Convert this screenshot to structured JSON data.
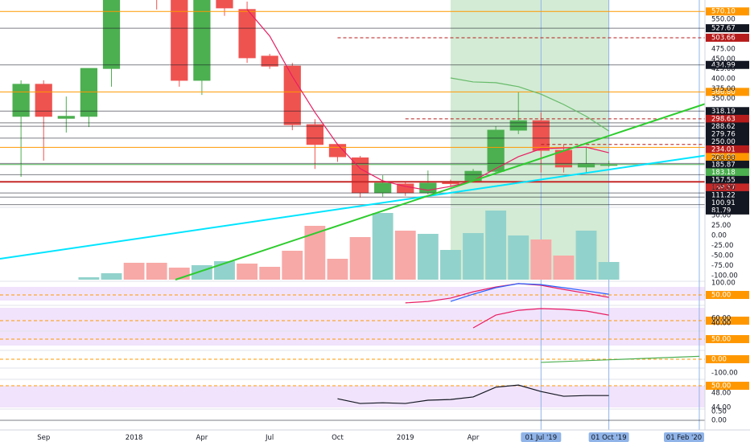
{
  "chart_data": [
    {
      "type": "candlestick",
      "x": [
        0,
        1,
        2,
        3,
        4,
        5,
        6,
        7,
        8,
        9,
        10,
        11,
        12,
        13,
        14,
        15,
        16,
        17,
        18,
        19,
        20,
        21,
        22,
        23,
        24,
        25,
        26
      ],
      "open": [
        305,
        386,
        300,
        305,
        426,
        640,
        700,
        650,
        396,
        640,
        575,
        457,
        432,
        284,
        234,
        200,
        112,
        134,
        112,
        140,
        142,
        166,
        270,
        294,
        219,
        177,
        183
      ],
      "high": [
        396,
        396,
        355,
        426,
        660,
        900,
        760,
        700,
        700,
        680,
        595,
        463,
        440,
        298,
        236,
        205,
        156,
        140,
        168,
        145,
        172,
        280,
        366,
        315,
        234,
        227,
        193
      ],
      "low": [
        152,
        193,
        264,
        278,
        380,
        610,
        575,
        380,
        359,
        559,
        440,
        425,
        270,
        172,
        190,
        100,
        102,
        104,
        108,
        128,
        138,
        160,
        260,
        163,
        163,
        163,
        177
      ],
      "close": [
        386,
        305,
        305,
        426,
        640,
        700,
        650,
        396,
        640,
        579,
        453,
        432,
        284,
        234,
        203,
        112,
        136,
        112,
        136,
        135,
        166,
        270,
        294,
        219,
        177,
        185,
        183
      ],
      "up_color": "#4caf50",
      "down_color": "#ef5350",
      "series": [
        {
          "color": "#e91e63",
          "values": [
            null,
            null,
            null,
            null,
            null,
            null,
            null,
            null,
            null,
            null,
            575,
            508,
            406,
            315,
            234,
            173,
            142,
            128,
            118,
            128,
            142,
            173,
            203,
            223,
            225,
            227,
            213
          ]
        },
        {
          "color": "#66bb6a",
          "values": [
            null,
            null,
            null,
            null,
            null,
            null,
            null,
            null,
            null,
            null,
            null,
            null,
            null,
            null,
            null,
            null,
            null,
            null,
            null,
            402,
            392,
            390,
            380,
            361,
            335,
            305,
            268
          ]
        }
      ],
      "xlim": [
        -0.93,
        30.25
      ],
      "ylim": [
        75,
        599
      ],
      "xticks": [
        {
          "value": 1,
          "label": "Sep"
        },
        {
          "value": 5,
          "label": "2018"
        },
        {
          "value": 8,
          "label": "Apr"
        },
        {
          "value": 11,
          "label": "Jul"
        },
        {
          "value": 14,
          "label": "Oct"
        },
        {
          "value": 17,
          "label": "2019"
        },
        {
          "value": 20,
          "label": "Apr"
        }
      ],
      "markers": [
        {
          "value": 23,
          "label": "01 Jul '19"
        },
        {
          "value": 26,
          "label": "01 Oct '19"
        },
        {
          "value": 30,
          "label": "01 Feb '20"
        }
      ],
      "marker_color": "#90b4e8",
      "highlight": {
        "range": [
          19,
          26
        ],
        "color": "#c8e6c9"
      },
      "yticks": [
        {
          "value": 550,
          "label": "550.00"
        },
        {
          "value": 475,
          "label": "475.00"
        },
        {
          "value": 450,
          "label": "450.00"
        },
        {
          "value": 425,
          "label": "425.00"
        },
        {
          "value": 400,
          "label": "400.00"
        },
        {
          "value": 375,
          "label": "375.00"
        },
        {
          "value": 350,
          "label": "350.00"
        },
        {
          "value": 200,
          "label": "200.00"
        },
        {
          "value": 125,
          "label": "125.00"
        }
      ],
      "levels": [
        {
          "value": 570.1,
          "label": "570.10",
          "color": "#ff9800"
        },
        {
          "value": 527.67,
          "label": "527.67",
          "color": "#131722"
        },
        {
          "value": 503.66,
          "label": "503.66",
          "color": "#b71c1c",
          "style": "dashed",
          "from": 14
        },
        {
          "value": 434.99,
          "label": "434.99",
          "color": "#131722"
        },
        {
          "value": 366.8,
          "label": "366.80",
          "color": "#ff9800"
        },
        {
          "value": 318.19,
          "label": "318.19",
          "color": "#131722"
        },
        {
          "value": 298.63,
          "label": "298.63",
          "color": "#b71c1c",
          "style": "dashed",
          "from": 17
        },
        {
          "value": 288.62,
          "label": "288.62",
          "color": "#131722"
        },
        {
          "value": 279.76,
          "label": "279.76",
          "color": "#131722"
        },
        {
          "value": 250,
          "label": "250.00",
          "color": "#131722"
        },
        {
          "value": 234.01,
          "label": "234.01",
          "color": "#b71c1c",
          "style": "dashed",
          "from": 23
        },
        {
          "value": 226.56,
          "label": "226.56",
          "color": "#ff9800"
        },
        {
          "value": 185.87,
          "label": "185.87",
          "color": "#131722"
        },
        {
          "value": 183.18,
          "label": "183.18",
          "color": "#4caf50"
        },
        {
          "value": 157.55,
          "label": "157.55",
          "color": "#131722"
        },
        {
          "value": 139.57,
          "label": "139.57",
          "color": "#c62828"
        },
        {
          "value": 111.22,
          "label": "111.22",
          "color": "#131722"
        },
        {
          "value": 100.91,
          "label": "100.91",
          "color": "#131722"
        },
        {
          "value": 81.79,
          "label": "81.79",
          "color": "#131722"
        }
      ]
    },
    {
      "type": "bar",
      "x": [
        3,
        4,
        5,
        6,
        7,
        8,
        9,
        10,
        11,
        12,
        13,
        14,
        15,
        16,
        17,
        18,
        19,
        20,
        21,
        22,
        23,
        24,
        25,
        26
      ],
      "values": [
        -104,
        -94,
        -68,
        -68,
        -80,
        -74,
        -64,
        -70,
        -78,
        -38,
        24,
        -58,
        -4,
        56,
        12,
        4,
        -36,
        6,
        62,
        0,
        -10,
        -50,
        12,
        -66
      ],
      "colors": [
        "#92d2cc",
        "#92d2cc",
        "#f7a9a7",
        "#f7a9a7",
        "#f7a9a7",
        "#92d2cc",
        "#92d2cc",
        "#f7a9a7",
        "#f7a9a7",
        "#f7a9a7",
        "#f7a9a7",
        "#f7a9a7",
        "#f7a9a7",
        "#92d2cc",
        "#f7a9a7",
        "#92d2cc",
        "#92d2cc",
        "#92d2cc",
        "#92d2cc",
        "#92d2cc",
        "#f7a9a7",
        "#f7a9a7",
        "#92d2cc",
        "#92d2cc"
      ],
      "ylim": [
        -110,
        70
      ],
      "yticks": [
        {
          "value": 50,
          "label": "50.00"
        },
        {
          "value": 25,
          "label": "25.00"
        },
        {
          "value": 0,
          "label": "0.00"
        },
        {
          "value": -25,
          "label": "-25.00"
        },
        {
          "value": -50,
          "label": "-50.00"
        },
        {
          "value": -75,
          "label": "-75.00"
        },
        {
          "value": -100,
          "label": "-100.00"
        }
      ]
    },
    {
      "type": "line",
      "x": [
        17,
        18,
        19,
        20,
        21,
        22,
        23,
        24,
        25,
        26
      ],
      "series": [
        {
          "color": "#e91e63",
          "values": [
            17,
            23,
            37,
            63,
            83,
            97,
            90,
            73,
            57,
            40
          ]
        },
        {
          "color": "#2962ff",
          "values": [
            null,
            null,
            23,
            53,
            80,
            97,
            93,
            80,
            67,
            53
          ]
        }
      ],
      "ylim": [
        16.7,
        106.7
      ],
      "yticks": [
        {
          "value": 100,
          "label": "100.00"
        }
      ],
      "levels": [
        {
          "value": 50,
          "label": "50.00",
          "color": "#ff9800",
          "style": "dashed"
        }
      ]
    },
    {
      "type": "line",
      "x": [
        20,
        21,
        22,
        23,
        24,
        25,
        26
      ],
      "series": [
        {
          "color": "#e91e63",
          "values": [
            20,
            73,
            93,
            100,
            97,
            90,
            73
          ]
        }
      ],
      "ylim": [
        6.7,
        113.3
      ],
      "yticks": [
        {
          "value": 60,
          "label": "60.00"
        },
        {
          "value": 40,
          "label": "40.00"
        }
      ],
      "levels": [
        {
          "value": 50,
          "label": "50.00",
          "color": "#ff9800",
          "style": "dashed"
        }
      ]
    },
    {
      "type": "line",
      "ylim": [
        0,
        100
      ],
      "levels": [
        {
          "value": 50,
          "label": "50.00",
          "color": "#ff9800",
          "style": "dashed"
        }
      ]
    },
    {
      "type": "line",
      "x": [
        23,
        30
      ],
      "series": [
        {
          "color": "#4caf50",
          "values": [
            -3.6,
            3.3
          ]
        }
      ],
      "ylim": [
        -10,
        10
      ],
      "levels": [
        {
          "value": 0,
          "label": "0.00",
          "color": "#ff9800",
          "style": "dashed"
        }
      ]
    },
    {
      "type": "line",
      "ylim": [
        -120,
        -80
      ],
      "yticks": [
        {
          "value": -100,
          "label": "-100.00"
        }
      ]
    },
    {
      "type": "line",
      "x": [
        14,
        15,
        16,
        17,
        18,
        19,
        20,
        21,
        22,
        23,
        24,
        25,
        26
      ],
      "series": [
        {
          "color": "#131722",
          "values": [
            46.4,
            45.1,
            45.3,
            45.1,
            46.0,
            46.2,
            46.9,
            49.6,
            50.2,
            48.4,
            47.1,
            47.3,
            47.3
          ]
        }
      ],
      "ylim": [
        43.56,
        51.78
      ],
      "yticks": [
        {
          "value": 48,
          "label": "48.00"
        },
        {
          "value": 44,
          "label": "44.00"
        }
      ],
      "levels": [
        {
          "value": 50,
          "label": "50.00",
          "color": "#ff9800",
          "style": "dashed"
        }
      ]
    },
    {
      "type": "line",
      "ylim": [
        -0.41,
        0.636
      ],
      "yticks": [
        {
          "value": 0.5,
          "label": "0.50"
        },
        {
          "value": 0,
          "label": "0.00"
        }
      ],
      "levels": [
        {
          "value": 0,
          "color": "#131722"
        }
      ]
    }
  ]
}
